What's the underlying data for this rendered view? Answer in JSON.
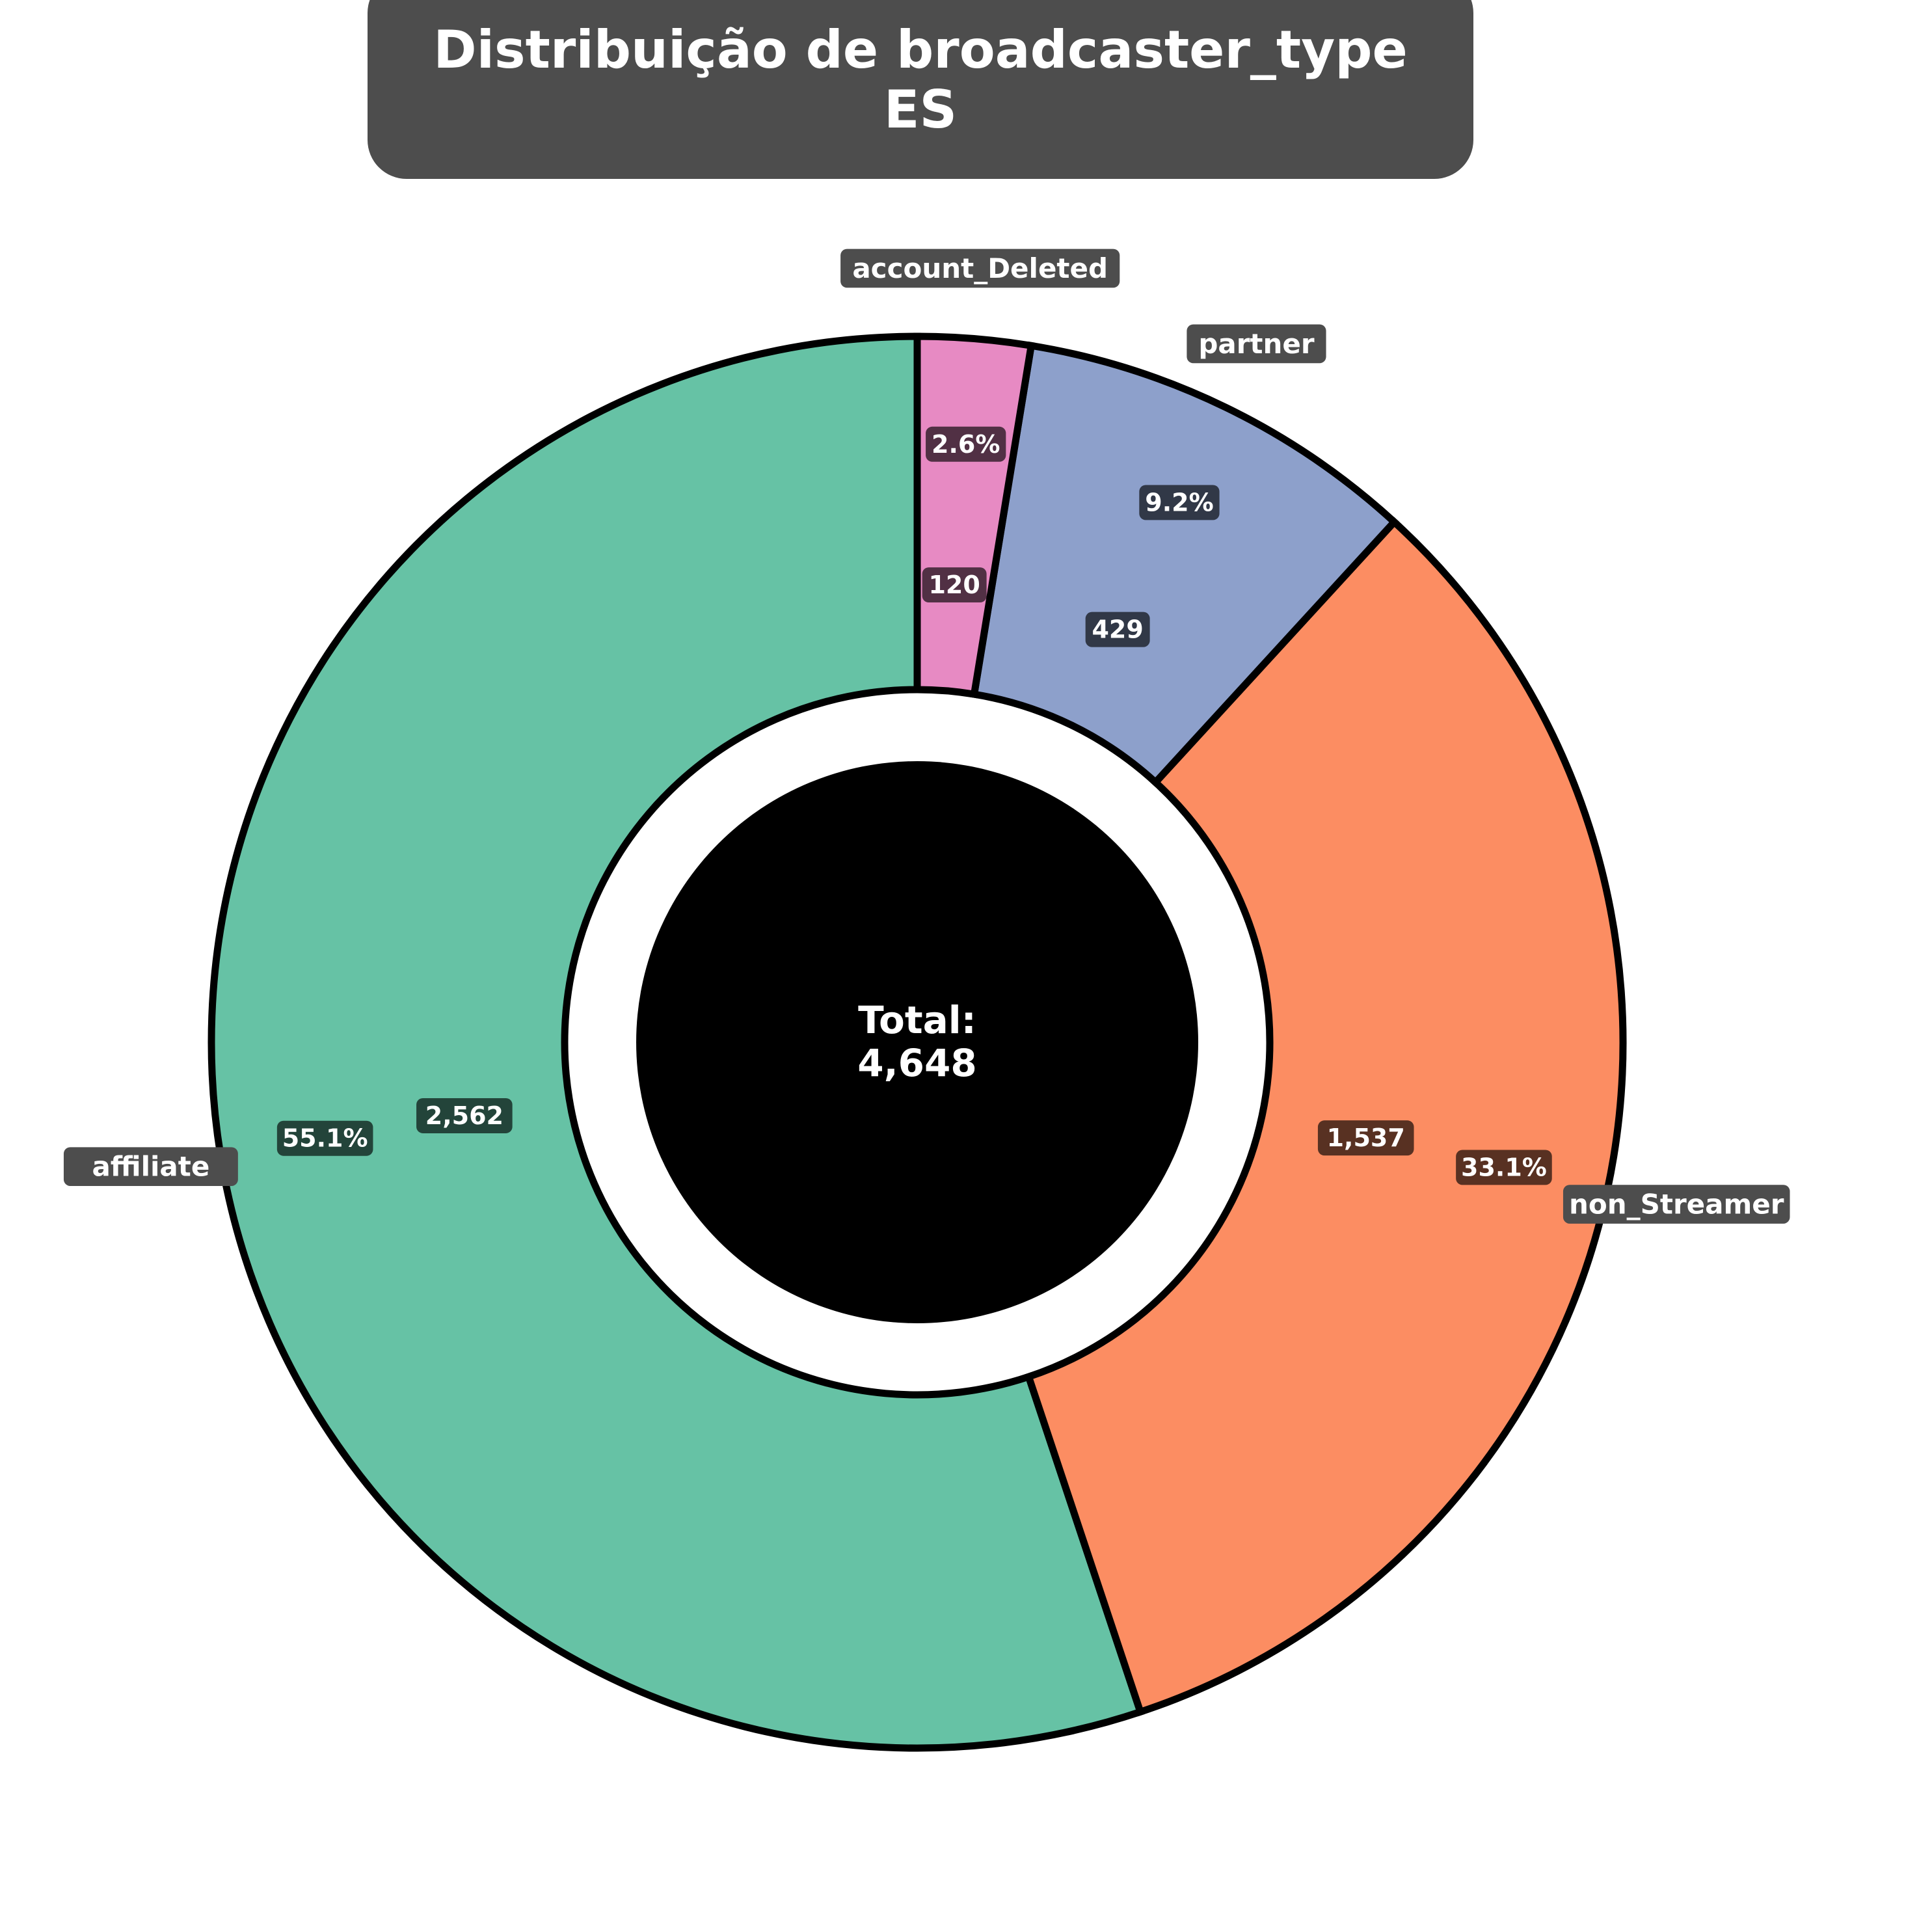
{
  "chart_data": {
    "type": "pie",
    "variant": "donut",
    "title": "Distribuição de broadcaster_type",
    "subtitle": "ES",
    "center_label": "Total:",
    "center_value": "4,648",
    "categories": [
      "affiliate",
      "non_Streamer",
      "partner",
      "account_Deleted"
    ],
    "values": [
      2562,
      1537,
      429,
      120
    ],
    "value_labels": [
      "2,562",
      "1,537",
      "429",
      "120"
    ],
    "percent_labels": [
      "55.1%",
      "33.1%",
      "9.2%",
      "2.6%"
    ],
    "colors": [
      "#66c2a5",
      "#fc8d62",
      "#8da0cb",
      "#e78ac3"
    ],
    "direction": "counterclockwise",
    "start_angle_deg": 90,
    "legend": "none"
  }
}
